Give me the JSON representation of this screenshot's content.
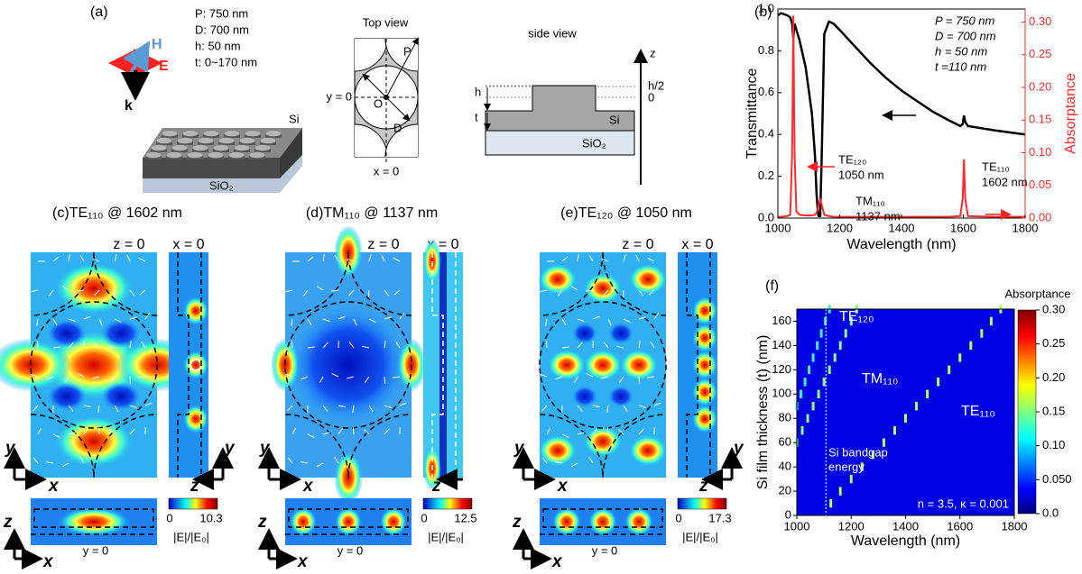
{
  "panel_a": {
    "label": "(a)",
    "params": [
      "P: 750 nm",
      "D: 700 nm",
      "h: 50 nm",
      "t: 0~170 nm"
    ],
    "field_h": "H",
    "field_e": "E",
    "wave_k": "k",
    "film": "Si",
    "substrate": "SiO₂",
    "top_view": {
      "title": "Top view",
      "P": "P",
      "D": "D",
      "O": "O",
      "y0": "y = 0",
      "x0": "x = 0"
    },
    "side_view": {
      "title": "side view",
      "z": "z",
      "h_half": "h/2",
      "zero": "0",
      "h": "h",
      "t": "t",
      "film": "Si",
      "substrate": "SiO₂"
    }
  },
  "chart_data": [
    {
      "type": "line",
      "label": "(b)",
      "x": [
        1000,
        1010,
        1030,
        1040,
        1046,
        1050,
        1054,
        1060,
        1070,
        1090,
        1110,
        1120,
        1125,
        1130,
        1132,
        1137,
        1142,
        1150,
        1165,
        1180,
        1200,
        1250,
        1300,
        1350,
        1400,
        1450,
        1500,
        1550,
        1590,
        1598,
        1602,
        1606,
        1615,
        1700,
        1800
      ],
      "xlim": [
        1000,
        1800
      ],
      "xticks": [
        1000,
        1200,
        1400,
        1600,
        1800
      ],
      "xlabel": "Wavelength (nm)",
      "ylim": [
        0,
        1
      ],
      "yticks": [
        {
          "value": 0,
          "label": "0.0"
        },
        0.2,
        0.4,
        0.6,
        0.8,
        {
          "value": 1,
          "label": "1.0"
        }
      ],
      "ylabel": "Transmittance",
      "y2lim": [
        0,
        0.32
      ],
      "y2ticks": [
        {
          "value": 0,
          "label": "0.00"
        },
        {
          "value": 0.05,
          "label": "0.05"
        },
        {
          "value": 0.1,
          "label": "0.10"
        },
        {
          "value": 0.15,
          "label": "0.15"
        },
        {
          "value": 0.2,
          "label": "0.20"
        },
        {
          "value": 0.25,
          "label": "0.25"
        },
        {
          "value": 0.3,
          "label": "0.30"
        }
      ],
      "y2label": "Absorptance",
      "series": [
        {
          "color": "#000000",
          "values": [
            0.97,
            0.98,
            0.97,
            0.96,
            0.93,
            0.86,
            0.93,
            0.9,
            0.85,
            0.72,
            0.5,
            0.3,
            0.12,
            0.02,
            0.01,
            0.01,
            0.3,
            0.88,
            0.94,
            0.93,
            0.9,
            0.82,
            0.74,
            0.67,
            0.61,
            0.56,
            0.51,
            0.47,
            0.44,
            0.45,
            0.49,
            0.46,
            0.44,
            0.42,
            0.4
          ]
        },
        {
          "color": "#ff2a2a",
          "axis": "y2",
          "values": [
            0.002,
            0.002,
            0.003,
            0.005,
            0.1,
            0.31,
            0.1,
            0.01,
            0.005,
            0.004,
            0.004,
            0.005,
            0.008,
            0.015,
            0.02,
            0.03,
            0.02,
            0.005,
            0.003,
            0.002,
            0.002,
            0.002,
            0.002,
            0.002,
            0.002,
            0.002,
            0.002,
            0.002,
            0.003,
            0.03,
            0.09,
            0.03,
            0.003,
            0.002,
            0.002
          ]
        }
      ],
      "params": [
        "P = 750 nm",
        "D = 700 nm",
        "h = 50 nm",
        "t =110 nm"
      ],
      "modes": [
        {
          "name": "TE₁₂₀",
          "wavelength": "1050 nm"
        },
        {
          "name": "TM₁₁₀",
          "wavelength": "1137 nm"
        },
        {
          "name": "TE₁₁₀",
          "wavelength": "1602 nm"
        }
      ]
    },
    {
      "type": "heatmap",
      "label": "(f)",
      "xlim": [
        1000,
        1800
      ],
      "xticks": [
        1000,
        1200,
        1400,
        1600,
        1800
      ],
      "xlabel": "Wavelength (nm)",
      "ylim": [
        0,
        170
      ],
      "yticks": [
        0,
        20,
        40,
        60,
        80,
        100,
        120,
        140,
        160
      ],
      "ylabel": "Si film thickness (t) (nm)",
      "series": [
        {
          "name": "TE₁₂₀",
          "color": "#3cf0c8",
          "x": [
            1000,
            1015,
            1030,
            1045,
            1060,
            1075,
            1090,
            1105,
            1120
          ],
          "values": [
            90,
            100,
            110,
            120,
            130,
            140,
            150,
            160,
            170
          ]
        },
        {
          "name": "TM₁₁₀",
          "color": "#8cff78",
          "x": [
            1000,
            1020,
            1040,
            1060,
            1080,
            1100,
            1120,
            1140,
            1160,
            1180,
            1200,
            1220
          ],
          "values": [
            60,
            70,
            80,
            90,
            100,
            110,
            120,
            130,
            140,
            150,
            160,
            170
          ]
        },
        {
          "name": "TE₁₁₀",
          "color": "#b4ff50",
          "x": [
            1125,
            1160,
            1200,
            1240,
            1280,
            1320,
            1360,
            1400,
            1440,
            1480,
            1520,
            1560,
            1600,
            1640,
            1680,
            1715,
            1750
          ],
          "values": [
            10,
            20,
            30,
            40,
            50,
            60,
            70,
            80,
            90,
            100,
            110,
            120,
            130,
            140,
            150,
            160,
            170
          ]
        }
      ],
      "bandgap_x": 1107,
      "bandgap_label": [
        "Si bandgap",
        "energy"
      ],
      "note": "n = 3.5, κ = 0.001",
      "colorbar": {
        "title": "Absorptance",
        "lim": [
          0,
          0.3
        ],
        "ticks": [
          {
            "value": 0,
            "label": "0.0"
          },
          {
            "value": 0.05,
            "label": "0.050"
          },
          {
            "value": 0.1,
            "label": "0.10"
          },
          0.15,
          {
            "value": 0.2,
            "label": "0.20"
          },
          0.25,
          {
            "value": 0.3,
            "label": "0.30"
          }
        ]
      }
    }
  ],
  "field_maps": [
    {
      "title": "(c)TE₁₁₀ @ 1602 nm",
      "top_label": "z = 0",
      "side_label": "x = 0",
      "bottom_label": "y = 0",
      "cbar_min": "0",
      "cbar_max": "10.3",
      "cbar_unit": "|E|/|E₀|",
      "axes_top": [
        "y",
        "x"
      ],
      "axes_side": [
        "y",
        "z"
      ],
      "axes_bottom": [
        "z",
        "x"
      ]
    },
    {
      "title": "(d)TM₁₁₀ @ 1137 nm",
      "top_label": "z = 0",
      "side_label": "x = 0",
      "bottom_label": "y = 0",
      "cbar_min": "0",
      "cbar_max": "12.5",
      "cbar_unit": "|E|/|E₀|",
      "axes_top": [
        "y",
        "x"
      ],
      "axes_side": [
        "z"
      ],
      "axes_bottom": [
        "z",
        "x"
      ]
    },
    {
      "title": "(e)TE₁₂₀ @ 1050 nm",
      "top_label": "z = 0",
      "side_label": "x = 0",
      "bottom_label": "y = 0",
      "cbar_min": "0",
      "cbar_max": "17.3",
      "cbar_unit": "|E|/|E₀|",
      "axes_top": [
        "y",
        "x"
      ],
      "axes_side": [
        "y",
        "z"
      ],
      "axes_bottom": [
        "z",
        "x"
      ]
    }
  ]
}
